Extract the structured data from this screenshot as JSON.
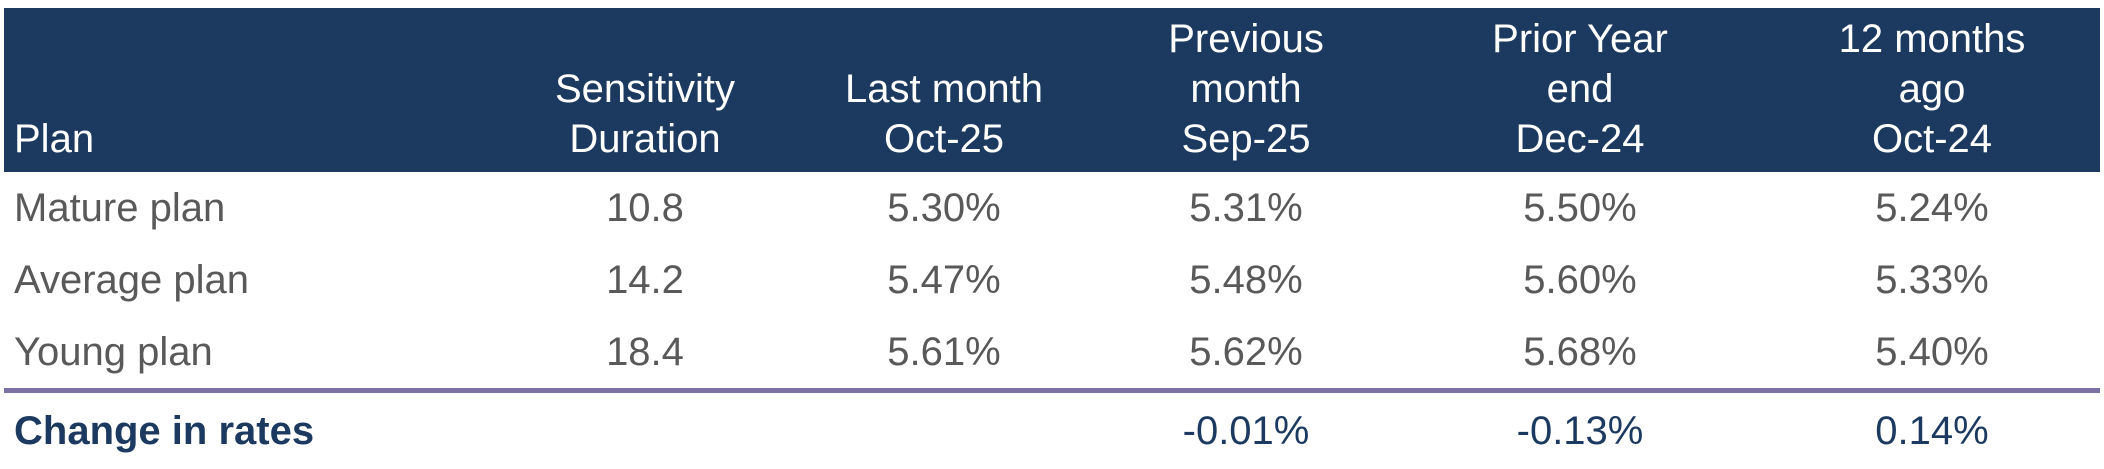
{
  "chart_data": {
    "type": "table",
    "columns": [
      {
        "key": "plan",
        "lines": [
          "Plan"
        ]
      },
      {
        "key": "sensitivity_duration",
        "lines": [
          "Sensitivity",
          "Duration"
        ]
      },
      {
        "key": "last_month",
        "lines": [
          "Last month",
          "Oct-25"
        ]
      },
      {
        "key": "previous_month",
        "lines": [
          "Previous",
          "month",
          "Sep-25"
        ]
      },
      {
        "key": "prior_year_end",
        "lines": [
          "Prior Year",
          "end",
          "Dec-24"
        ]
      },
      {
        "key": "twelve_months_ago",
        "lines": [
          "12 months",
          "ago",
          "Oct-24"
        ]
      }
    ],
    "rows": [
      [
        "Mature plan",
        "10.8",
        "5.30%",
        "5.31%",
        "5.50%",
        "5.24%"
      ],
      [
        "Average plan",
        "14.2",
        "5.47%",
        "5.48%",
        "5.60%",
        "5.33%"
      ],
      [
        "Young plan",
        "18.4",
        "5.61%",
        "5.62%",
        "5.68%",
        "5.40%"
      ]
    ],
    "summary_row": [
      "Change in rates",
      "",
      "",
      "-0.01%",
      "-0.13%",
      "0.14%"
    ],
    "layout_hints": {
      "header_alignment": "bottom",
      "value_alignment": "center",
      "plan_column_alignment": "left",
      "separator_above_summary": true
    }
  },
  "colors": {
    "header_background": "#1c3a5f",
    "header_text": "#ffffff",
    "body_text": "#595959",
    "summary_text": "#1c3a5f",
    "separator_purple": "#7d72a6",
    "page_background": "#ffffff"
  }
}
